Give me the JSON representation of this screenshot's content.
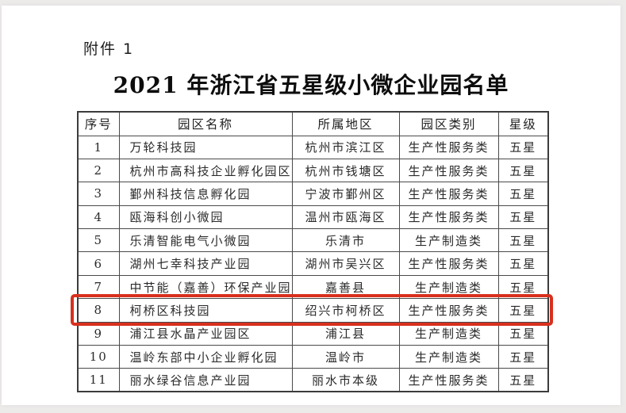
{
  "page": {
    "attachment_label": "附件 1",
    "title": "2021 年浙江省五星级小微企业园名单"
  },
  "table": {
    "headers": [
      "序号",
      "园区名称",
      "所属地区",
      "园区类别",
      "星级"
    ],
    "rows": [
      [
        "1",
        "万轮科技园",
        "杭州市滨江区",
        "生产性服务类",
        "五星"
      ],
      [
        "2",
        "杭州市高科技企业孵化园区",
        "杭州市钱塘区",
        "生产性服务类",
        "五星"
      ],
      [
        "3",
        "鄞州科技信息孵化园",
        "宁波市鄞州区",
        "生产性服务类",
        "五星"
      ],
      [
        "4",
        "瓯海科创小微园",
        "温州市瓯海区",
        "生产性服务类",
        "五星"
      ],
      [
        "5",
        "乐清智能电气小微园",
        "乐清市",
        "生产制造类",
        "五星"
      ],
      [
        "6",
        "湖州七幸科技产业园",
        "湖州市吴兴区",
        "生产性服务类",
        "五星"
      ],
      [
        "7",
        "中节能（嘉善）环保产业园",
        "嘉善县",
        "生产制造类",
        "五星"
      ],
      [
        "8",
        "柯桥区科技园",
        "绍兴市柯桥区",
        "生产性服务类",
        "五星"
      ],
      [
        "9",
        "浦江县水晶产业园区",
        "浦江县",
        "生产制造类",
        "五星"
      ],
      [
        "10",
        "温岭东部中小企业孵化园",
        "温岭市",
        "生产制造类",
        "五星"
      ],
      [
        "11",
        "丽水绿谷信息产业园",
        "丽水市本级",
        "生产性服务类",
        "五星"
      ]
    ],
    "highlighted_row_number": 8,
    "highlight_color": "#d8301e"
  }
}
